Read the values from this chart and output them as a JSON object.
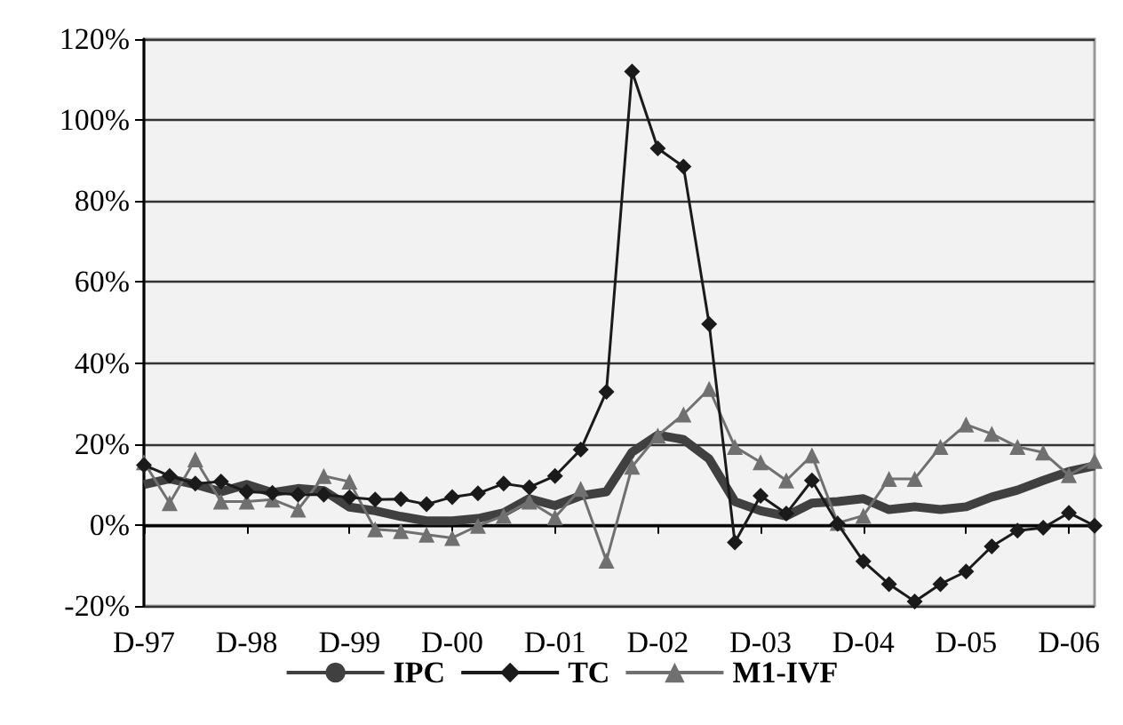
{
  "chart_data": {
    "type": "line",
    "categories": [
      "D-97",
      null,
      null,
      null,
      "D-98",
      null,
      null,
      null,
      "D-99",
      null,
      null,
      null,
      "D-00",
      null,
      null,
      null,
      "D-01",
      null,
      null,
      null,
      "D-02",
      null,
      null,
      null,
      "D-03",
      null,
      null,
      null,
      "D-04",
      null,
      null,
      null,
      "D-05",
      null,
      null,
      null,
      "D-06",
      null
    ],
    "series": [
      {
        "name": "IPC",
        "color": "#404040",
        "marker": "none",
        "values": [
          10,
          11.4,
          10,
          8.2,
          10,
          8,
          9,
          8.5,
          4.4,
          3.5,
          2.1,
          1,
          1,
          1.6,
          3,
          6.5,
          4.8,
          7.2,
          8.2,
          18,
          22.2,
          21.1,
          16.3,
          5.8,
          3.5,
          2.2,
          5.4,
          5.8,
          6.5,
          3.8,
          4.5,
          3.8,
          4.5,
          6.9,
          8.6,
          11,
          13.2,
          14.6
        ]
      },
      {
        "name": "TC",
        "color": "#1a1a1a",
        "marker": "diamond",
        "values": [
          14.8,
          12.1,
          10.2,
          10.7,
          8.2,
          7.9,
          7.5,
          7.5,
          6.8,
          6.3,
          6.4,
          5.1,
          6.9,
          7.8,
          10.2,
          9.3,
          12.1,
          18.6,
          32.9,
          112,
          93,
          88.5,
          49.6,
          -4.3,
          7.2,
          2.8,
          11,
          0.3,
          -9,
          -14.6,
          -18.9,
          -14.6,
          -11.5,
          -5.3,
          -1.4,
          -0.7,
          3,
          -0.2
        ]
      },
      {
        "name": "M1-IVF",
        "color": "#707070",
        "marker": "triangle",
        "values": [
          15.5,
          5.4,
          16.2,
          5.8,
          5.8,
          6.3,
          3.8,
          12.1,
          10.7,
          -1.1,
          -1.5,
          -2.4,
          -3.2,
          -0.2,
          2.3,
          5.8,
          1.9,
          8.9,
          -8.8,
          14.4,
          22.1,
          27.3,
          33.6,
          19.3,
          15.5,
          11,
          17.2,
          0.5,
          2.3,
          11.4,
          11.4,
          19.3,
          24.8,
          22.5,
          19.3,
          17.9,
          12.3,
          15.8
        ]
      }
    ],
    "ylim": [
      -20,
      120
    ],
    "yticks": [
      {
        "value": -20,
        "label": "-20%"
      },
      {
        "value": 0,
        "label": "0%"
      },
      {
        "value": 20,
        "label": "20%"
      },
      {
        "value": 40,
        "label": "40%"
      },
      {
        "value": 60,
        "label": "60%"
      },
      {
        "value": 80,
        "label": "80%"
      },
      {
        "value": 100,
        "label": "100%"
      },
      {
        "value": 120,
        "label": "120%"
      }
    ],
    "grid": "y",
    "legend": "bottom"
  }
}
